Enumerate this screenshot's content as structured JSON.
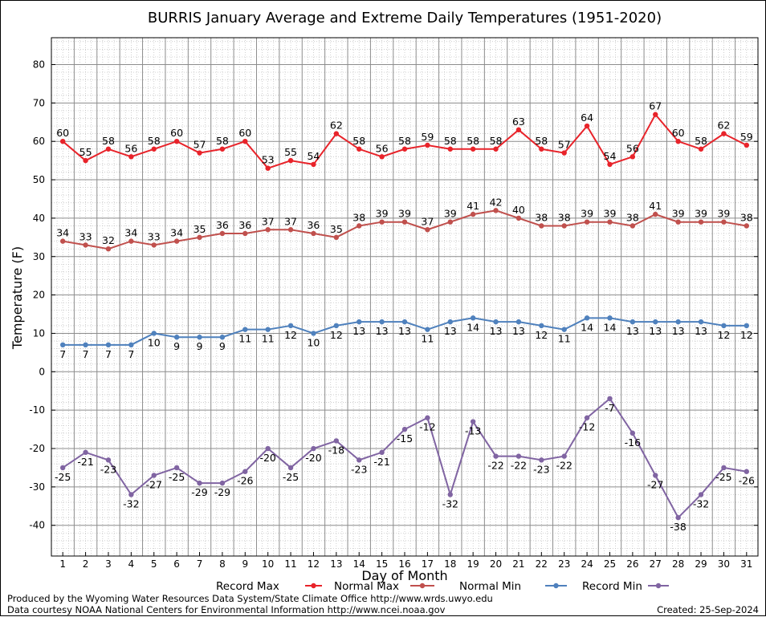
{
  "chart_data": {
    "type": "line",
    "title": "BURRIS January Average and Extreme Daily Temperatures (1951-2020)",
    "xlabel": "Day of Month",
    "ylabel": "Temperature (F)",
    "ylim": [
      -48,
      87
    ],
    "yticks": [
      -40,
      -30,
      -20,
      -10,
      0,
      10,
      20,
      30,
      40,
      50,
      60,
      70,
      80
    ],
    "grid": true,
    "legend_position": "bottom",
    "categories": [
      "1",
      "2",
      "3",
      "4",
      "5",
      "6",
      "7",
      "8",
      "9",
      "10",
      "11",
      "12",
      "13",
      "14",
      "15",
      "16",
      "17",
      "18",
      "19",
      "20",
      "21",
      "22",
      "23",
      "24",
      "25",
      "26",
      "27",
      "28",
      "29",
      "30",
      "31"
    ],
    "series": [
      {
        "name": "Record Max",
        "color": "#e8232a",
        "label_position": "above",
        "values": [
          60,
          55,
          58,
          56,
          58,
          60,
          57,
          58,
          60,
          53,
          55,
          54,
          62,
          58,
          56,
          58,
          59,
          58,
          58,
          58,
          63,
          58,
          57,
          64,
          54,
          56,
          67,
          60,
          58,
          62,
          59
        ]
      },
      {
        "name": "Normal Max",
        "color": "#c0504d",
        "label_position": "above",
        "values": [
          34,
          33,
          32,
          34,
          33,
          34,
          35,
          36,
          36,
          37,
          37,
          36,
          35,
          38,
          39,
          39,
          37,
          39,
          41,
          42,
          40,
          38,
          38,
          39,
          39,
          38,
          41,
          39,
          39,
          39,
          38
        ]
      },
      {
        "name": "Normal Min",
        "color": "#4f81bd",
        "label_position": "below",
        "values": [
          7,
          7,
          7,
          7,
          10,
          9,
          9,
          9,
          11,
          11,
          12,
          10,
          12,
          13,
          13,
          13,
          11,
          13,
          14,
          13,
          13,
          12,
          11,
          14,
          14,
          13,
          13,
          13,
          13,
          12,
          12
        ]
      },
      {
        "name": "Record Min",
        "color": "#8064a2",
        "label_position": "below",
        "values": [
          -25,
          -21,
          -23,
          -32,
          -27,
          -25,
          -29,
          -29,
          -26,
          -20,
          -25,
          -20,
          -18,
          -23,
          -21,
          -15,
          -12,
          -32,
          -13,
          -22,
          -22,
          -23,
          -22,
          -12,
          -7,
          -16,
          -27,
          -38,
          -32,
          -25,
          -26
        ]
      }
    ]
  },
  "footer": {
    "credit_line_1": "Produced by the Wyoming Water Resources Data System/State Climate Office http://www.wrds.uwyo.edu",
    "credit_line_2": "Data courtesy NOAA National Centers for Environmental Information http://www.ncei.noaa.gov",
    "created": "Created:  25-Sep-2024"
  }
}
